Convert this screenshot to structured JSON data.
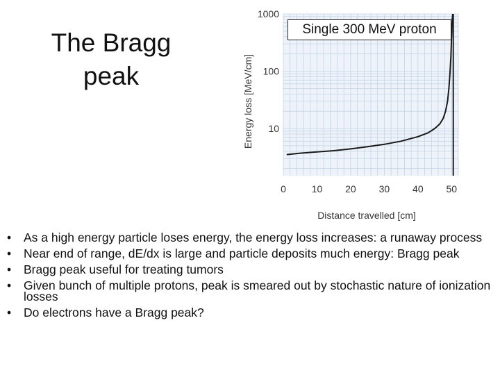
{
  "slide": {
    "title_lines": [
      "The Bragg",
      "peak"
    ],
    "bullets": [
      "As a high energy particle loses energy, the energy loss increases: a runaway process",
      "Near end of range, dE/dx is large and particle deposits much energy: Bragg peak",
      "Bragg peak useful for treating tumors",
      "Given bunch of multiple protons, peak is smeared out by stochastic nature of ionization losses",
      "Do electrons have a Bragg peak?"
    ]
  },
  "chart_data": {
    "type": "line",
    "title": "Single 300 MeV proton",
    "xlabel": "Distance travelled [cm]",
    "ylabel": "Energy loss [MeV/cm]",
    "xscale": "linear",
    "yscale": "log",
    "xlim": [
      0,
      52
    ],
    "ylim": [
      1.5,
      1000
    ],
    "xticks": [
      0,
      10,
      20,
      30,
      40,
      50
    ],
    "xtick_labels": [
      "0",
      "10",
      "20",
      "30",
      "40",
      "50"
    ],
    "yticks": [
      10,
      100,
      1000
    ],
    "ytick_labels": [
      "10",
      "100",
      "1000"
    ],
    "grid": true,
    "vertical_marker_x": 50.5,
    "series": [
      {
        "name": "Single 300 MeV proton",
        "x": [
          1,
          5,
          10,
          15,
          20,
          25,
          30,
          35,
          40,
          43,
          45,
          46.5,
          47.5,
          48.2,
          48.8,
          49.2,
          49.5,
          49.8,
          50,
          50.2,
          50.35
        ],
        "y": [
          3.5,
          3.7,
          3.9,
          4.1,
          4.4,
          4.8,
          5.3,
          6.0,
          7.2,
          8.4,
          10,
          12,
          15,
          20,
          30,
          50,
          90,
          180,
          400,
          800,
          1000
        ]
      }
    ]
  }
}
